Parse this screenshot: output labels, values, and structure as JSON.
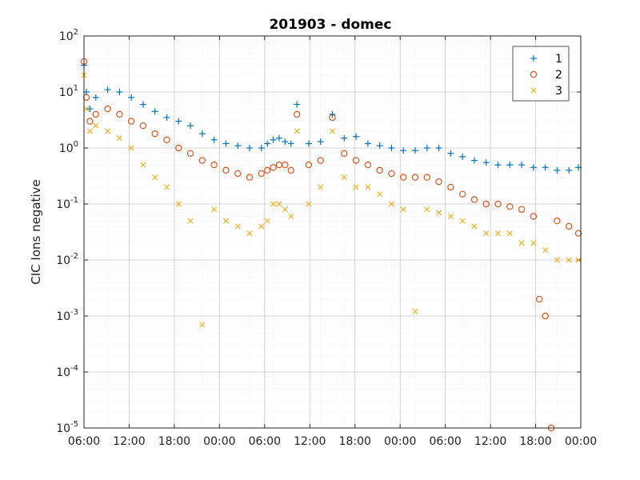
{
  "chart_data": {
    "type": "scatter",
    "title": "201903 - domec",
    "xlabel": "",
    "ylabel": "CIC Ions negative",
    "y_scale": "log",
    "ylim": [
      1e-05,
      100
    ],
    "yticks": [
      {
        "base": "10",
        "exp": "2",
        "value": 100
      },
      {
        "base": "10",
        "exp": "1",
        "value": 10
      },
      {
        "base": "10",
        "exp": "0",
        "value": 1
      },
      {
        "base": "10",
        "exp": "-1",
        "value": 0.1
      },
      {
        "base": "10",
        "exp": "-2",
        "value": 0.01
      },
      {
        "base": "10",
        "exp": "-3",
        "value": 0.001
      },
      {
        "base": "10",
        "exp": "-4",
        "value": 0.0001
      },
      {
        "base": "10",
        "exp": "-5",
        "value": 1e-05
      }
    ],
    "xlim_hours": [
      0,
      42
    ],
    "xticks": [
      "06:00",
      "12:00",
      "18:00",
      "00:00",
      "06:00",
      "12:00",
      "18:00",
      "00:00",
      "06:00",
      "12:00",
      "18:00",
      "00:00"
    ],
    "grid": true,
    "legend_position": "top-right",
    "series": [
      {
        "name": "1",
        "marker": "plus",
        "color": "#0072BD",
        "x": [
          0.0,
          0.2,
          0.5,
          1.0,
          2.0,
          3.0,
          4.0,
          5.0,
          6.0,
          7.0,
          8.0,
          9.0,
          10.0,
          11.0,
          12.0,
          13.0,
          14.0,
          15.0,
          15.5,
          16.0,
          16.5,
          17.0,
          17.5,
          18.0,
          19.0,
          20.0,
          21.0,
          22.0,
          23.0,
          24.0,
          25.0,
          26.0,
          27.0,
          28.0,
          29.0,
          30.0,
          31.0,
          32.0,
          33.0,
          34.0,
          35.0,
          36.0,
          37.0,
          38.0,
          39.0,
          40.0,
          41.0,
          41.8
        ],
        "y": [
          30,
          10,
          5,
          8,
          11,
          10,
          8,
          6,
          4.5,
          3.5,
          3,
          2.5,
          1.8,
          1.4,
          1.2,
          1.1,
          1.0,
          1.0,
          1.2,
          1.4,
          1.5,
          1.3,
          1.2,
          6,
          1.2,
          1.3,
          4,
          1.5,
          1.6,
          1.2,
          1.1,
          1.0,
          0.9,
          0.9,
          1.0,
          1.0,
          0.8,
          0.7,
          0.6,
          0.55,
          0.5,
          0.5,
          0.5,
          0.45,
          0.45,
          0.4,
          0.4,
          0.45
        ]
      },
      {
        "name": "2",
        "marker": "circle",
        "color": "#D95319",
        "x": [
          0.0,
          0.2,
          0.5,
          1.0,
          2.0,
          3.0,
          4.0,
          5.0,
          6.0,
          7.0,
          8.0,
          9.0,
          10.0,
          11.0,
          12.0,
          13.0,
          14.0,
          15.0,
          15.5,
          16.0,
          16.5,
          17.0,
          17.5,
          18.0,
          19.0,
          20.0,
          21.0,
          22.0,
          23.0,
          24.0,
          25.0,
          26.0,
          27.0,
          28.0,
          29.0,
          30.0,
          31.0,
          32.0,
          33.0,
          34.0,
          35.0,
          36.0,
          37.0,
          38.0,
          38.5,
          39.0,
          39.5,
          40.0,
          41.0,
          41.8
        ],
        "y": [
          35,
          8,
          3,
          4,
          5,
          4,
          3,
          2.5,
          1.8,
          1.4,
          1.0,
          0.8,
          0.6,
          0.5,
          0.4,
          0.35,
          0.3,
          0.35,
          0.4,
          0.45,
          0.5,
          0.5,
          0.4,
          4,
          0.5,
          0.6,
          3.5,
          0.8,
          0.6,
          0.5,
          0.4,
          0.35,
          0.3,
          0.3,
          0.3,
          0.25,
          0.2,
          0.15,
          0.12,
          0.1,
          0.1,
          0.09,
          0.08,
          0.06,
          0.002,
          0.001,
          1e-05,
          0.05,
          0.04,
          0.03
        ]
      },
      {
        "name": "3",
        "marker": "x",
        "color": "#EDB120",
        "x": [
          0.0,
          0.2,
          0.5,
          1.0,
          2.0,
          3.0,
          4.0,
          5.0,
          6.0,
          7.0,
          8.0,
          9.0,
          10.0,
          11.0,
          12.0,
          13.0,
          14.0,
          15.0,
          15.5,
          16.0,
          16.5,
          17.0,
          17.5,
          18.0,
          19.0,
          20.0,
          21.0,
          22.0,
          23.0,
          24.0,
          25.0,
          26.0,
          27.0,
          28.0,
          29.0,
          30.0,
          31.0,
          32.0,
          33.0,
          34.0,
          35.0,
          36.0,
          37.0,
          38.0,
          39.0,
          40.0,
          41.0,
          41.8
        ],
        "y": [
          20,
          5,
          2,
          2.5,
          2,
          1.5,
          1.0,
          0.5,
          0.3,
          0.2,
          0.1,
          0.05,
          0.0007,
          0.08,
          0.05,
          0.04,
          0.03,
          0.04,
          0.05,
          0.1,
          0.1,
          0.08,
          0.06,
          2,
          0.1,
          0.2,
          2,
          0.3,
          0.2,
          0.2,
          0.15,
          0.1,
          0.08,
          0.0012,
          0.08,
          0.07,
          0.06,
          0.05,
          0.04,
          0.03,
          0.03,
          0.03,
          0.02,
          0.02,
          0.015,
          0.01,
          0.01,
          0.01
        ]
      }
    ]
  }
}
